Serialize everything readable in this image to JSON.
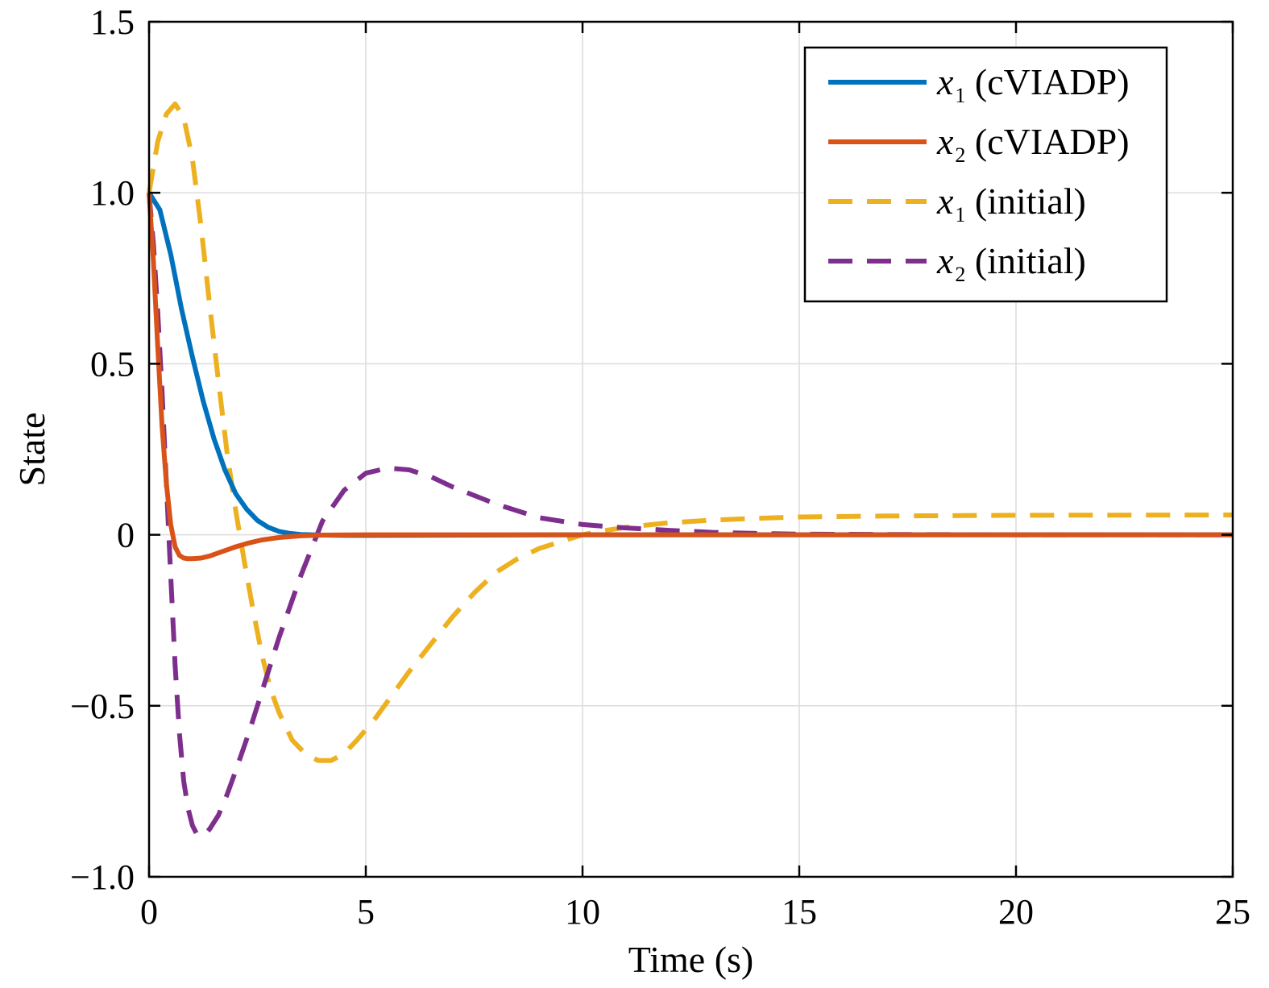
{
  "chart_data": {
    "type": "line",
    "title": "",
    "xlabel": "Time (s)",
    "ylabel": "State",
    "xlim": [
      0,
      25
    ],
    "ylim": [
      -1.0,
      1.5
    ],
    "grid": true,
    "legend_position": "top-right",
    "x_ticks": [
      0,
      5,
      10,
      15,
      20,
      25
    ],
    "x_tick_labels": [
      "0",
      "5",
      "10",
      "15",
      "20",
      "25"
    ],
    "y_ticks": [
      -1.0,
      -0.5,
      0,
      0.5,
      1.0,
      1.5
    ],
    "y_tick_labels": [
      "−1.0",
      "−0.5",
      "0",
      "0.5",
      "1.0",
      "1.5"
    ],
    "series": [
      {
        "name": "x1 (cVIADP)",
        "var": "x",
        "sub": "1",
        "suffix": " (cVIADP)",
        "color": "#0072BD",
        "dashed": false,
        "x": [
          0,
          0.25,
          0.5,
          0.75,
          1.0,
          1.25,
          1.5,
          1.75,
          2.0,
          2.25,
          2.5,
          2.75,
          3.0,
          3.25,
          3.5,
          3.75,
          4.0,
          4.5,
          5.0,
          10,
          15,
          20,
          25
        ],
        "y": [
          1.0,
          0.95,
          0.82,
          0.66,
          0.52,
          0.39,
          0.28,
          0.19,
          0.12,
          0.075,
          0.042,
          0.022,
          0.01,
          0.004,
          0.001,
          0.0,
          -0.001,
          -0.002,
          -0.002,
          0.0,
          0.0,
          0.0,
          0.0
        ]
      },
      {
        "name": "x2 (cVIADP)",
        "var": "x",
        "sub": "2",
        "suffix": " (cVIADP)",
        "color": "#D95319",
        "dashed": false,
        "x": [
          0,
          0.1,
          0.2,
          0.3,
          0.4,
          0.5,
          0.6,
          0.7,
          0.8,
          0.9,
          1.0,
          1.2,
          1.4,
          1.6,
          1.8,
          2.0,
          2.3,
          2.6,
          3.0,
          3.5,
          4.0,
          5.0,
          10,
          15,
          20,
          25
        ],
        "y": [
          1.0,
          0.8,
          0.55,
          0.32,
          0.15,
          0.03,
          -0.035,
          -0.06,
          -0.068,
          -0.07,
          -0.07,
          -0.068,
          -0.062,
          -0.053,
          -0.044,
          -0.035,
          -0.024,
          -0.015,
          -0.008,
          -0.003,
          -0.001,
          0.0,
          0.0,
          0.0,
          0.0,
          0.0
        ]
      },
      {
        "name": "x1 (initial)",
        "var": "x",
        "sub": "1",
        "suffix": " (initial)",
        "color": "#EDB120",
        "dashed": true,
        "x": [
          0,
          0.2,
          0.4,
          0.6,
          0.8,
          1.0,
          1.2,
          1.4,
          1.6,
          1.8,
          2.0,
          2.2,
          2.4,
          2.6,
          2.8,
          3.0,
          3.3,
          3.6,
          3.9,
          4.2,
          4.5,
          4.8,
          5.2,
          5.6,
          6.0,
          6.5,
          7.0,
          7.5,
          8.0,
          8.5,
          9.0,
          9.5,
          10.0,
          10.5,
          11.0,
          12.0,
          13.0,
          14.0,
          15.0,
          17.0,
          20.0,
          25.0
        ],
        "y": [
          1.0,
          1.15,
          1.23,
          1.26,
          1.22,
          1.1,
          0.9,
          0.67,
          0.45,
          0.24,
          0.07,
          -0.08,
          -0.22,
          -0.35,
          -0.45,
          -0.52,
          -0.6,
          -0.64,
          -0.66,
          -0.66,
          -0.64,
          -0.6,
          -0.54,
          -0.47,
          -0.4,
          -0.32,
          -0.24,
          -0.17,
          -0.11,
          -0.07,
          -0.04,
          -0.02,
          0.0,
          0.012,
          0.022,
          0.035,
          0.043,
          0.048,
          0.052,
          0.055,
          0.057,
          0.058
        ]
      },
      {
        "name": "x2 (initial)",
        "var": "x",
        "sub": "2",
        "suffix": " (initial)",
        "color": "#7E2F8E",
        "dashed": true,
        "x": [
          0,
          0.1,
          0.2,
          0.3,
          0.4,
          0.5,
          0.6,
          0.7,
          0.8,
          0.9,
          1.0,
          1.1,
          1.2,
          1.3,
          1.4,
          1.6,
          1.8,
          2.0,
          2.3,
          2.6,
          3.0,
          3.5,
          4.0,
          4.5,
          5.0,
          5.5,
          6.0,
          6.5,
          7.0,
          8.0,
          9.0,
          10.0,
          11.0,
          12.0,
          13.0,
          14.0,
          15.0,
          17.0,
          20.0,
          25.0
        ],
        "y": [
          1.0,
          0.85,
          0.65,
          0.42,
          0.15,
          -0.12,
          -0.38,
          -0.58,
          -0.72,
          -0.8,
          -0.85,
          -0.875,
          -0.88,
          -0.875,
          -0.86,
          -0.82,
          -0.76,
          -0.69,
          -0.58,
          -0.46,
          -0.3,
          -0.12,
          0.04,
          0.13,
          0.18,
          0.195,
          0.19,
          0.17,
          0.14,
          0.09,
          0.05,
          0.03,
          0.02,
          0.013,
          0.007,
          0.004,
          0.002,
          0.001,
          0.0,
          0.0
        ]
      }
    ]
  }
}
